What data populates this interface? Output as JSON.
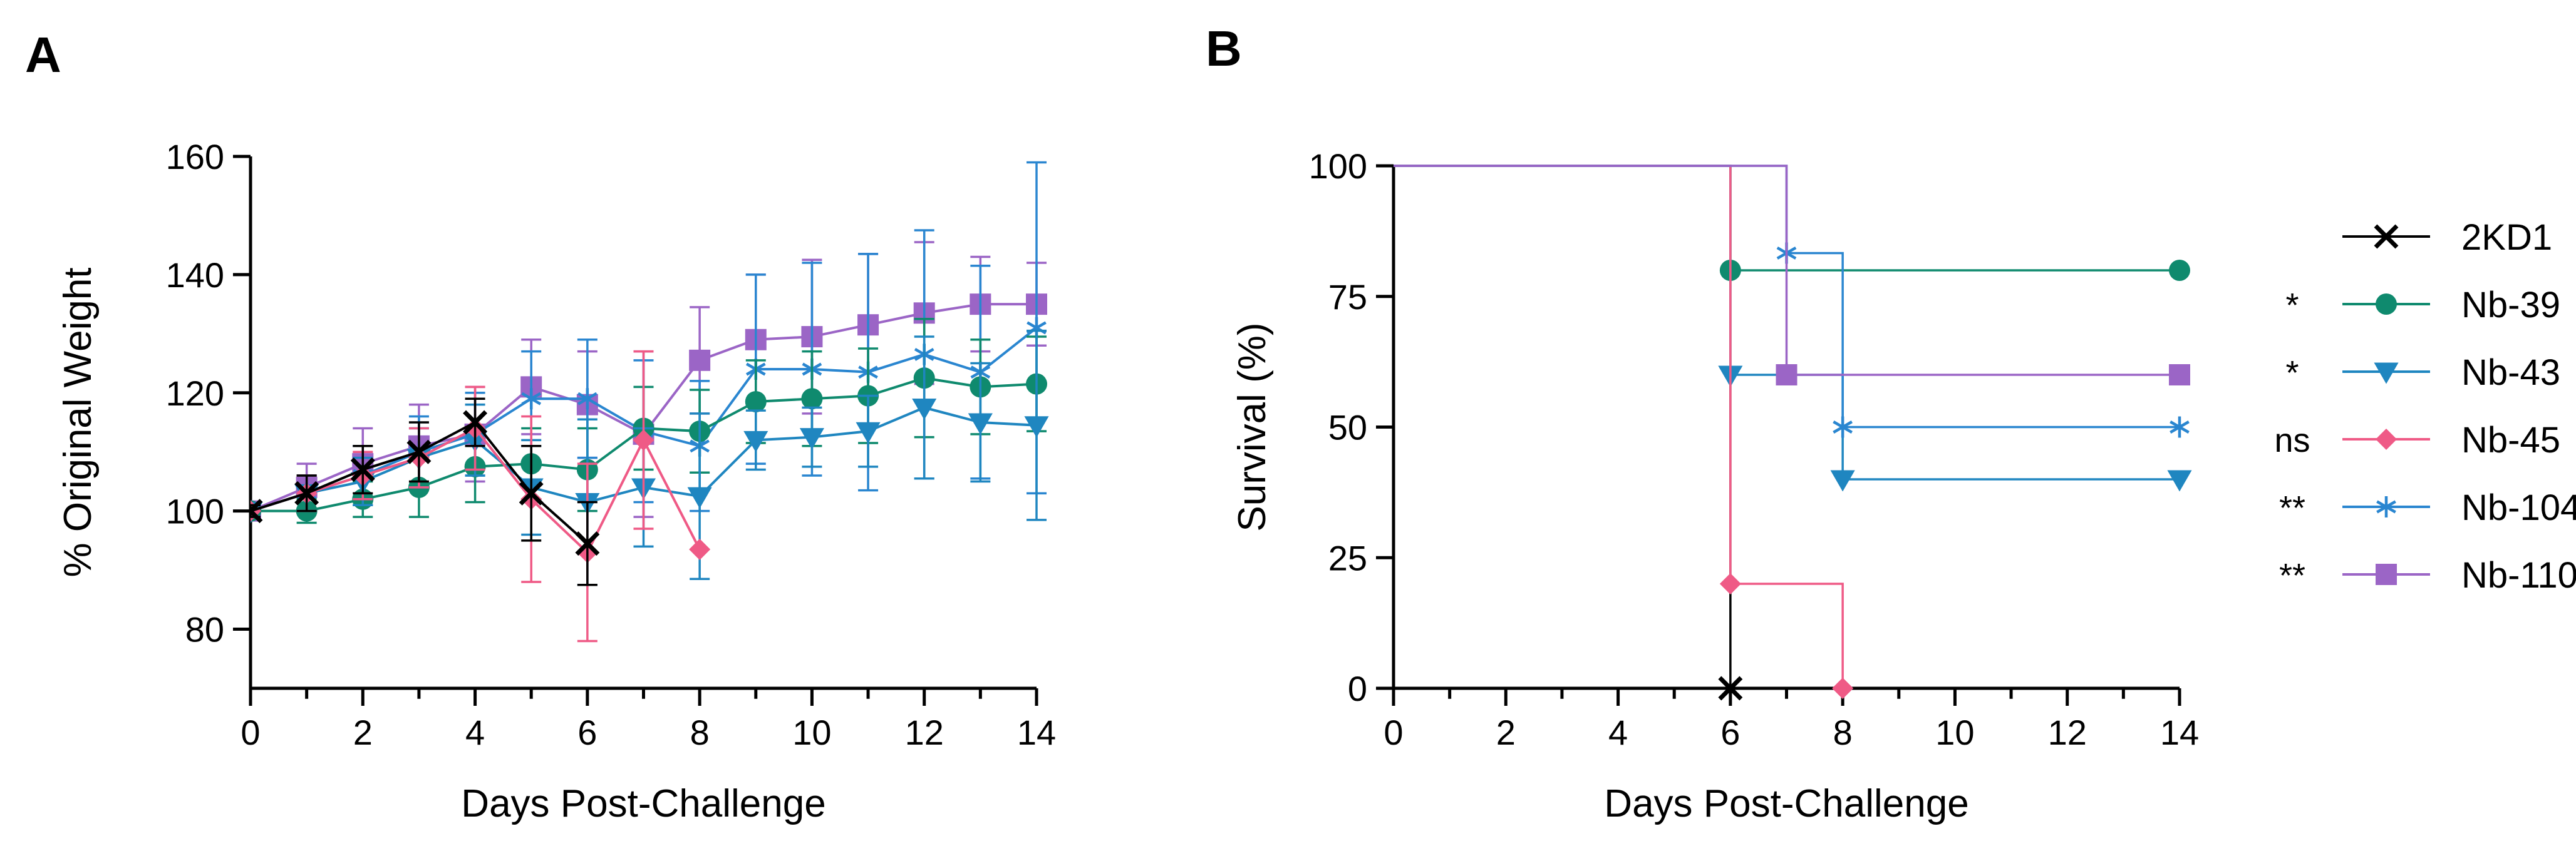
{
  "colors": {
    "2KD1": "#000000",
    "Nb-39": "#0f8a6e",
    "Nb-43": "#1f86c0",
    "Nb-45": "#ef5a86",
    "Nb-104": "#2a86d0",
    "Nb-110": "#9b65c6"
  },
  "markers": {
    "2KD1": "x",
    "Nb-39": "circle",
    "Nb-43": "triangle-down",
    "Nb-45": "diamond",
    "Nb-104": "asterisk",
    "Nb-110": "square"
  },
  "chart_data": [
    {
      "panel": "A",
      "type": "line",
      "xlabel": "Days Post-Challenge",
      "ylabel": "% Original Weight",
      "xlim": [
        0,
        14
      ],
      "ylim": [
        70,
        160
      ],
      "xticks": [
        0,
        2,
        4,
        6,
        8,
        10,
        12,
        14
      ],
      "yticks": [
        80,
        100,
        120,
        140,
        160
      ],
      "grid": false,
      "error_bars": true,
      "series": [
        {
          "name": "Nb-110",
          "x": [
            0,
            1,
            2,
            3,
            4,
            5,
            6,
            7,
            8,
            9,
            10,
            11,
            12,
            13,
            14
          ],
          "y": [
            100,
            104,
            108,
            111,
            113,
            121,
            118,
            113,
            125.5,
            129,
            129.5,
            131.5,
            133.5,
            135,
            135
          ],
          "err": [
            1,
            4,
            6,
            7,
            8,
            8,
            9,
            14,
            9,
            11,
            13,
            12,
            12,
            8,
            7
          ]
        },
        {
          "name": "Nb-104",
          "x": [
            0,
            1,
            2,
            3,
            4,
            5,
            6,
            7,
            8,
            9,
            10,
            11,
            12,
            13,
            14
          ],
          "y": [
            100,
            103,
            106,
            110,
            113,
            119,
            119,
            113.5,
            111,
            124,
            124,
            123.5,
            126.5,
            123.5,
            131
          ],
          "err": [
            1,
            3,
            5,
            6,
            7,
            8,
            10,
            12,
            11,
            16,
            18,
            20,
            21,
            18,
            28
          ]
        },
        {
          "name": "Nb-39",
          "x": [
            0,
            1,
            2,
            3,
            4,
            5,
            6,
            7,
            8,
            9,
            10,
            11,
            12,
            13,
            14
          ],
          "y": [
            100,
            100,
            102,
            104,
            107.5,
            108,
            107,
            114,
            113.5,
            118.5,
            119,
            119.5,
            122.5,
            121,
            121.5
          ],
          "err": [
            1,
            2,
            3,
            5,
            6,
            6,
            7,
            7,
            7,
            7,
            8,
            8,
            10,
            8,
            8
          ]
        },
        {
          "name": "Nb-43",
          "x": [
            0,
            1,
            2,
            3,
            4,
            5,
            6,
            7,
            8,
            9,
            10,
            11,
            12,
            13,
            14
          ],
          "y": [
            100,
            103,
            105,
            109,
            112,
            104,
            101.5,
            104,
            102.5,
            112,
            112.5,
            113.5,
            117.5,
            115,
            114.5
          ],
          "err": [
            1,
            3,
            4,
            5,
            6,
            8,
            14,
            10,
            14,
            5,
            5,
            6,
            12,
            10,
            16
          ]
        },
        {
          "name": "Nb-45",
          "x": [
            0,
            1,
            2,
            3,
            4,
            5,
            6,
            7,
            8
          ],
          "y": [
            100,
            103,
            106,
            109,
            114,
            102,
            93,
            112,
            93.5
          ],
          "err": [
            1,
            3,
            4,
            5,
            7,
            14,
            15,
            15,
            0
          ]
        },
        {
          "name": "2KD1",
          "x": [
            0,
            1,
            2,
            3,
            4,
            5,
            6
          ],
          "y": [
            100,
            103,
            107,
            110,
            115,
            103,
            94.5
          ],
          "err": [
            1,
            3,
            4,
            5,
            4,
            8,
            7
          ]
        }
      ]
    },
    {
      "panel": "B",
      "type": "line",
      "xlabel": "Days Post-Challenge",
      "ylabel": "Survival (%)",
      "xlim": [
        0,
        14
      ],
      "ylim": [
        0,
        100
      ],
      "xticks": [
        0,
        2,
        4,
        6,
        8,
        10,
        12,
        14
      ],
      "yticks": [
        0,
        25,
        50,
        75,
        100
      ],
      "grid": false,
      "step": true,
      "legend_position": "right",
      "series": [
        {
          "name": "2KD1",
          "significance": "",
          "x": [
            0,
            6
          ],
          "y": [
            100,
            0
          ],
          "markers": [
            [
              6,
              0
            ]
          ]
        },
        {
          "name": "Nb-39",
          "significance": "*",
          "x": [
            0,
            6,
            14
          ],
          "y": [
            100,
            80,
            80
          ],
          "markers": [
            [
              6,
              80
            ],
            [
              14,
              80
            ]
          ]
        },
        {
          "name": "Nb-43",
          "significance": "*",
          "x": [
            0,
            6,
            8,
            14
          ],
          "y": [
            100,
            60,
            40,
            40
          ],
          "markers": [
            [
              6,
              60
            ],
            [
              8,
              40
            ],
            [
              14,
              40
            ]
          ]
        },
        {
          "name": "Nb-45",
          "significance": "ns",
          "x": [
            0,
            6,
            8
          ],
          "y": [
            100,
            20,
            0
          ],
          "markers": [
            [
              6,
              20
            ],
            [
              8,
              0
            ]
          ]
        },
        {
          "name": "Nb-104",
          "significance": "**",
          "x": [
            0,
            7,
            8,
            14
          ],
          "y": [
            100,
            83.3,
            50,
            50
          ],
          "markers": [
            [
              7,
              83.3
            ],
            [
              8,
              50
            ],
            [
              14,
              50
            ]
          ]
        },
        {
          "name": "Nb-110",
          "significance": "**",
          "x": [
            0,
            7,
            14
          ],
          "y": [
            100,
            60,
            60
          ],
          "markers": [
            [
              7,
              60
            ],
            [
              14,
              60
            ]
          ]
        }
      ]
    }
  ],
  "legend": [
    {
      "name": "2KD1",
      "significance": ""
    },
    {
      "name": "Nb-39",
      "significance": "*"
    },
    {
      "name": "Nb-43",
      "significance": "*"
    },
    {
      "name": "Nb-45",
      "significance": "ns"
    },
    {
      "name": "Nb-104",
      "significance": "**"
    },
    {
      "name": "Nb-110",
      "significance": "**"
    }
  ],
  "panel_labels": [
    "A",
    "B"
  ]
}
